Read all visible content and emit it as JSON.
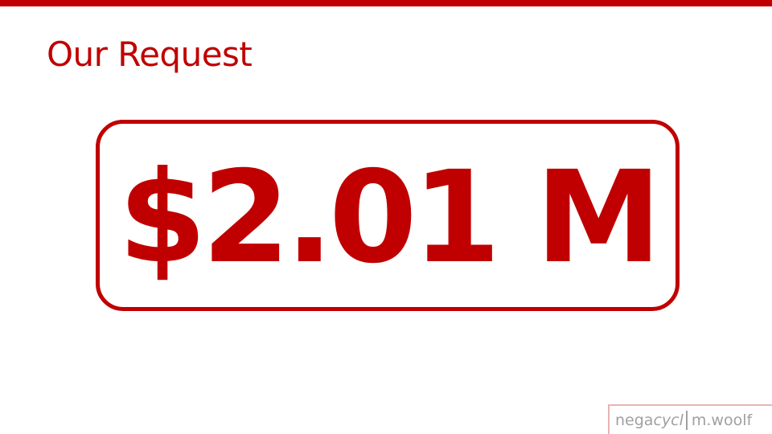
{
  "slide": {
    "title": "Our Request",
    "amount": "$2.01 M"
  },
  "credit": {
    "brand_prefix": "nega",
    "brand_accent": "cycl",
    "author": "m.woolf"
  },
  "colors": {
    "accent": "#c00000",
    "credit_text": "#a0a0a0",
    "credit_border": "#e8b4b4",
    "background": "#ffffff"
  }
}
